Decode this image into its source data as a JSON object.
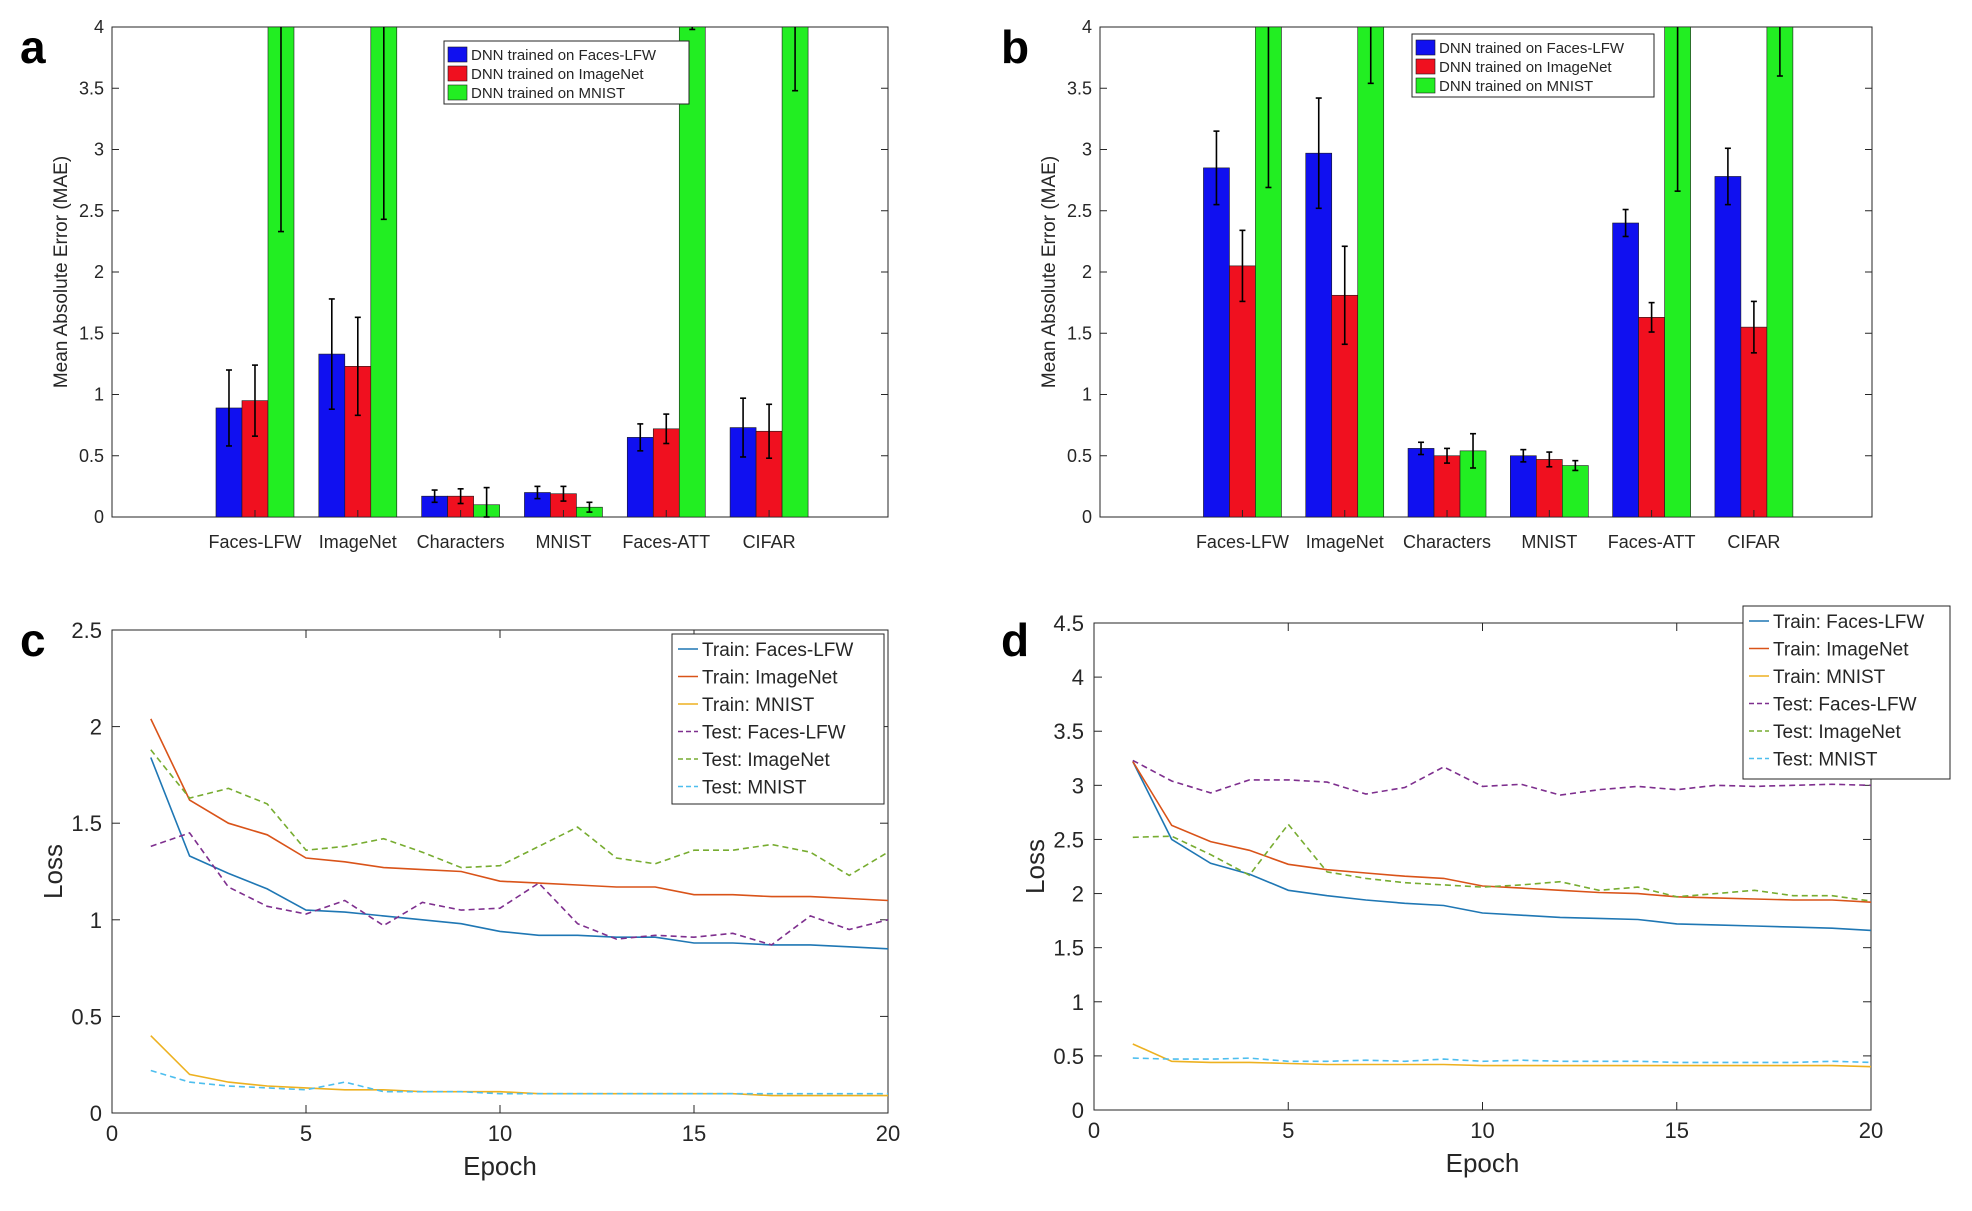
{
  "colors": {
    "blue": "#1010f0",
    "red": "#f0101f",
    "green": "#22ee22",
    "line_blue": "#1f77b4",
    "line_orange": "#d95319",
    "line_yellow": "#edb120",
    "line_purple": "#7e2f8e",
    "line_olive": "#77ac30",
    "line_cyan": "#4dbeee"
  },
  "chart_data": [
    {
      "panel": "a",
      "type": "bar",
      "ylabel": "Mean Absolute Error (MAE)",
      "xlabel": "",
      "ylim": [
        0,
        4
      ],
      "yticks": [
        "0",
        "0.5",
        "1",
        "1.5",
        "2",
        "2.5",
        "3",
        "3.5",
        "4"
      ],
      "categories": [
        "Faces-LFW",
        "ImageNet",
        "Characters",
        "MNIST",
        "Faces-ATT",
        "CIFAR"
      ],
      "legend_position": "top-right",
      "series": [
        {
          "name": "DNN trained on Faces-LFW",
          "color": "#1010f0",
          "values": [
            0.89,
            1.33,
            0.17,
            0.2,
            0.65,
            0.73
          ],
          "errors": [
            0.31,
            0.45,
            0.05,
            0.05,
            0.11,
            0.24
          ]
        },
        {
          "name": "DNN trained on ImageNet",
          "color": "#f0101f",
          "values": [
            0.95,
            1.23,
            0.17,
            0.19,
            0.72,
            0.7
          ],
          "errors": [
            0.29,
            0.4,
            0.06,
            0.06,
            0.12,
            0.22
          ]
        },
        {
          "name": "DNN trained on MNIST",
          "color": "#22ee22",
          "values": [
            4.0,
            4.0,
            0.1,
            0.08,
            4.0,
            4.0
          ],
          "errors": [
            1.67,
            1.57,
            0.14,
            0.04,
            0.02,
            0.52
          ]
        }
      ]
    },
    {
      "panel": "b",
      "type": "bar",
      "ylabel": "Mean Absolute Error (MAE)",
      "xlabel": "",
      "ylim": [
        0,
        4
      ],
      "yticks": [
        "0",
        "0.5",
        "1",
        "1.5",
        "2",
        "2.5",
        "3",
        "3.5",
        "4"
      ],
      "categories": [
        "Faces-LFW",
        "ImageNet",
        "Characters",
        "MNIST",
        "Faces-ATT",
        "CIFAR"
      ],
      "legend_position": "top-right",
      "series": [
        {
          "name": "DNN trained on Faces-LFW",
          "color": "#1010f0",
          "values": [
            2.85,
            2.97,
            0.56,
            0.5,
            2.4,
            2.78
          ],
          "errors": [
            0.3,
            0.45,
            0.05,
            0.05,
            0.11,
            0.23
          ]
        },
        {
          "name": "DNN trained on ImageNet",
          "color": "#f0101f",
          "values": [
            2.05,
            1.81,
            0.5,
            0.47,
            1.63,
            1.55
          ],
          "errors": [
            0.29,
            0.4,
            0.06,
            0.06,
            0.12,
            0.21
          ]
        },
        {
          "name": "DNN trained on MNIST",
          "color": "#22ee22",
          "values": [
            4.0,
            4.0,
            0.54,
            0.42,
            4.0,
            4.0
          ],
          "errors": [
            1.31,
            0.46,
            0.14,
            0.04,
            1.34,
            0.4
          ]
        }
      ]
    },
    {
      "panel": "c",
      "type": "line",
      "xlabel": "Epoch",
      "ylabel": "Loss",
      "xlim": [
        0,
        20
      ],
      "ylim": [
        0,
        2.5
      ],
      "xticks": [
        "0",
        "5",
        "10",
        "15",
        "20"
      ],
      "yticks": [
        "0",
        "0.5",
        "1",
        "1.5",
        "2",
        "2.5"
      ],
      "legend_position": "top-right",
      "x": [
        1,
        2,
        3,
        4,
        5,
        6,
        7,
        8,
        9,
        10,
        11,
        12,
        13,
        14,
        15,
        16,
        17,
        18,
        19,
        20
      ],
      "series": [
        {
          "name": "Train: Faces-LFW",
          "color": "#1f77b4",
          "dash": false,
          "values": [
            1.84,
            1.33,
            1.24,
            1.16,
            1.05,
            1.04,
            1.02,
            1.0,
            0.98,
            0.94,
            0.92,
            0.92,
            0.91,
            0.91,
            0.88,
            0.88,
            0.87,
            0.87,
            0.86,
            0.85
          ]
        },
        {
          "name": "Train: ImageNet",
          "color": "#d95319",
          "dash": false,
          "values": [
            2.04,
            1.62,
            1.5,
            1.44,
            1.32,
            1.3,
            1.27,
            1.26,
            1.25,
            1.2,
            1.19,
            1.18,
            1.17,
            1.17,
            1.13,
            1.13,
            1.12,
            1.12,
            1.11,
            1.1
          ]
        },
        {
          "name": "Train: MNIST",
          "color": "#edb120",
          "dash": false,
          "values": [
            0.4,
            0.2,
            0.16,
            0.14,
            0.13,
            0.12,
            0.12,
            0.11,
            0.11,
            0.11,
            0.1,
            0.1,
            0.1,
            0.1,
            0.1,
            0.1,
            0.09,
            0.09,
            0.09,
            0.09
          ]
        },
        {
          "name": "Test: Faces-LFW",
          "color": "#7e2f8e",
          "dash": true,
          "values": [
            1.38,
            1.45,
            1.17,
            1.07,
            1.03,
            1.1,
            0.97,
            1.09,
            1.05,
            1.06,
            1.19,
            0.98,
            0.9,
            0.92,
            0.91,
            0.93,
            0.87,
            1.02,
            0.95,
            1.0
          ]
        },
        {
          "name": "Test: ImageNet",
          "color": "#77ac30",
          "dash": true,
          "values": [
            1.88,
            1.63,
            1.68,
            1.6,
            1.36,
            1.38,
            1.42,
            1.35,
            1.27,
            1.28,
            1.38,
            1.48,
            1.32,
            1.29,
            1.36,
            1.36,
            1.39,
            1.35,
            1.23,
            1.35
          ]
        },
        {
          "name": "Test: MNIST",
          "color": "#4dbeee",
          "dash": true,
          "values": [
            0.22,
            0.16,
            0.14,
            0.13,
            0.12,
            0.16,
            0.11,
            0.11,
            0.11,
            0.1,
            0.1,
            0.1,
            0.1,
            0.1,
            0.1,
            0.1,
            0.1,
            0.1,
            0.1,
            0.1
          ]
        }
      ]
    },
    {
      "panel": "d",
      "type": "line",
      "xlabel": "Epoch",
      "ylabel": "Loss",
      "xlim": [
        0,
        20
      ],
      "ylim": [
        0,
        4.5
      ],
      "xticks": [
        "0",
        "5",
        "10",
        "15",
        "20"
      ],
      "yticks": [
        "0",
        "0.5",
        "1",
        "1.5",
        "2",
        "2.5",
        "3",
        "3.5",
        "4",
        "4.5"
      ],
      "legend_position": "top-right",
      "x": [
        1,
        2,
        3,
        4,
        5,
        6,
        7,
        8,
        9,
        10,
        11,
        12,
        13,
        14,
        15,
        16,
        17,
        18,
        19,
        20
      ],
      "series": [
        {
          "name": "Train: Faces-LFW",
          "color": "#1f77b4",
          "dash": false,
          "values": [
            3.22,
            2.5,
            2.28,
            2.18,
            2.03,
            1.98,
            1.94,
            1.91,
            1.89,
            1.82,
            1.8,
            1.78,
            1.77,
            1.76,
            1.72,
            1.71,
            1.7,
            1.69,
            1.68,
            1.66
          ]
        },
        {
          "name": "Train: ImageNet",
          "color": "#d95319",
          "dash": false,
          "values": [
            3.22,
            2.63,
            2.48,
            2.4,
            2.27,
            2.22,
            2.19,
            2.16,
            2.14,
            2.07,
            2.05,
            2.03,
            2.01,
            2.0,
            1.97,
            1.96,
            1.95,
            1.94,
            1.94,
            1.92
          ]
        },
        {
          "name": "Train: MNIST",
          "color": "#edb120",
          "dash": false,
          "values": [
            0.61,
            0.45,
            0.44,
            0.44,
            0.43,
            0.42,
            0.42,
            0.42,
            0.42,
            0.41,
            0.41,
            0.41,
            0.41,
            0.41,
            0.41,
            0.41,
            0.41,
            0.41,
            0.41,
            0.4
          ]
        },
        {
          "name": "Test: Faces-LFW",
          "color": "#7e2f8e",
          "dash": true,
          "values": [
            3.23,
            3.04,
            2.93,
            3.05,
            3.05,
            3.03,
            2.92,
            2.98,
            3.17,
            2.99,
            3.01,
            2.91,
            2.96,
            2.99,
            2.96,
            3.0,
            2.99,
            3.0,
            3.01,
            3.0
          ]
        },
        {
          "name": "Test: ImageNet",
          "color": "#77ac30",
          "dash": true,
          "values": [
            2.52,
            2.53,
            2.36,
            2.17,
            2.64,
            2.2,
            2.14,
            2.1,
            2.08,
            2.06,
            2.08,
            2.11,
            2.03,
            2.06,
            1.97,
            2.0,
            2.03,
            1.98,
            1.98,
            1.93
          ]
        },
        {
          "name": "Test: MNIST",
          "color": "#4dbeee",
          "dash": true,
          "values": [
            0.48,
            0.47,
            0.47,
            0.48,
            0.45,
            0.45,
            0.46,
            0.45,
            0.47,
            0.45,
            0.46,
            0.45,
            0.45,
            0.45,
            0.44,
            0.44,
            0.44,
            0.44,
            0.45,
            0.44
          ]
        }
      ]
    }
  ]
}
